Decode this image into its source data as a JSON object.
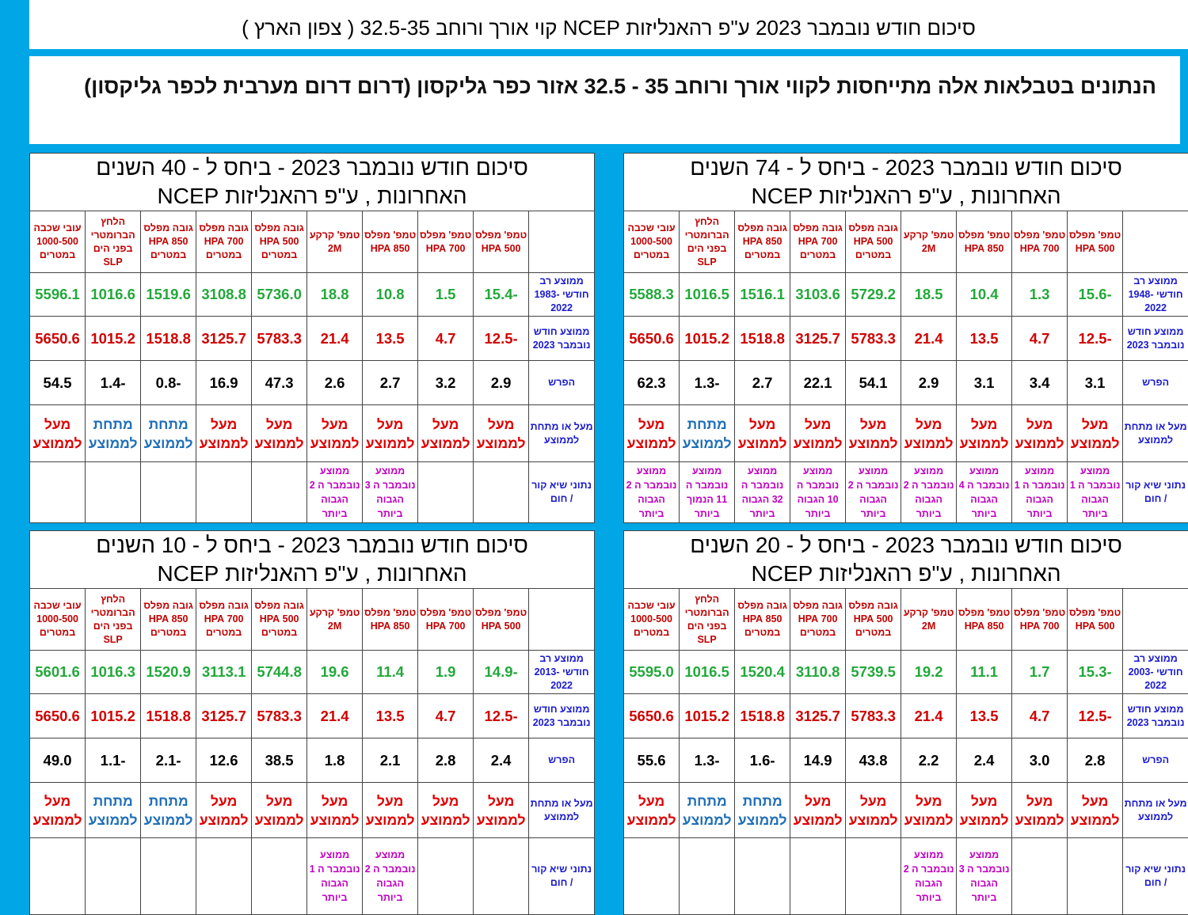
{
  "header": {
    "title": "סיכום חודש נובמבר 2023 ע\"פ רהאנליזות NCEP קוי אורך ורוחב 32.5-35 ( צפון הארץ )",
    "subtitle": "הנתונים בטבלאות אלה מתייחסות לקווי אורך ורוחב 35 - 32.5      אזור כפר  גליקסון  (דרום דרום מערבית לכפר גליקסון)"
  },
  "column_headers": [
    "טמפ' מפלס 500 HPA",
    "טמפ' מפלס 700 HPA",
    "טמפ' מפלס 850 HPA",
    "טמפ' קרקע 2M",
    "גובה מפלס 500 HPA במטרים",
    "גובה מפלס 700 HPA במטרים",
    "גובה מפלס 850 HPA במטרים",
    "הלחץ הברומטרי בפני הים SLP",
    "עובי שכבה 1000-500 במטרים"
  ],
  "tables": [
    {
      "title": "סיכום חודש נובמבר 2023 - ביחס ל - 74 השנים האחרונות , ע\"פ רהאנליזות NCEP",
      "rows": [
        {
          "label": "ממוצע רב חודשי 1948-2022",
          "color": "#22a83a",
          "cells": [
            "-15.6",
            "1.3",
            "10.4",
            "18.5",
            "5729.2",
            "3103.6",
            "1516.1",
            "1016.5",
            "5588.3"
          ]
        },
        {
          "label": "ממוצע חודש נובמבר 2023",
          "color": "#d00000",
          "cells": [
            "-12.5",
            "4.7",
            "13.5",
            "21.4",
            "5783.3",
            "3125.7",
            "1518.8",
            "1015.2",
            "5650.6"
          ]
        },
        {
          "label": "הפרש",
          "color": "#000000",
          "cells": [
            "3.1",
            "3.4",
            "3.1",
            "2.9",
            "54.1",
            "22.1",
            "2.7",
            "-1.3",
            "62.3"
          ]
        },
        {
          "label": "מעל או מתחת לממוצע",
          "cells": [
            "מעל לממוצע",
            "מעל לממוצע",
            "מעל לממוצע",
            "מעל לממוצע",
            "מעל לממוצע",
            "מעל לממוצע",
            "מעל לממוצע",
            "מתחת לממוצע",
            "מעל לממוצע"
          ],
          "cell_colors": [
            "#e00000",
            "#e00000",
            "#e00000",
            "#e00000",
            "#e00000",
            "#e00000",
            "#e00000",
            "#1f6fb8",
            "#e00000"
          ]
        },
        {
          "label": "נתוני שיא קור / חום",
          "color": "#c000c0",
          "cells": [
            "ממוצע נובמבר ה 1 הגבוה ביותר",
            "ממוצע נובמבר ה 1 הגבוה ביותר",
            "ממוצע נובמבר ה 4 הגבוה ביותר",
            "ממוצע נובמבר ה 2 הגבוה ביותר",
            "ממוצע נובמבר ה 2 הגבוה ביותר",
            "ממוצע נובמבר ה 10 הגבוה ביותר",
            "ממוצע נובמבר ה 32 הגבוה ביותר",
            "ממוצע נובמבר ה 11 הנמוך ביותר",
            "ממוצע נובמבר ה 2 הגבוה ביותר"
          ]
        }
      ]
    },
    {
      "title": "סיכום חודש נובמבר 2023 - ביחס ל - 40 השנים האחרונות , ע\"פ רהאנליזות NCEP",
      "rows": [
        {
          "label": "ממוצע רב חודשי 1983-2022",
          "color": "#22a83a",
          "cells": [
            "-15.4",
            "1.5",
            "10.8",
            "18.8",
            "5736.0",
            "3108.8",
            "1519.6",
            "1016.6",
            "5596.1"
          ]
        },
        {
          "label": "ממוצע חודש נובמבר 2023",
          "color": "#d00000",
          "cells": [
            "-12.5",
            "4.7",
            "13.5",
            "21.4",
            "5783.3",
            "3125.7",
            "1518.8",
            "1015.2",
            "5650.6"
          ]
        },
        {
          "label": "הפרש",
          "color": "#000000",
          "cells": [
            "2.9",
            "3.2",
            "2.7",
            "2.6",
            "47.3",
            "16.9",
            "-0.8",
            "-1.4",
            "54.5"
          ]
        },
        {
          "label": "מעל או מתחת לממוצע",
          "cells": [
            "מעל לממוצע",
            "מעל לממוצע",
            "מעל לממוצע",
            "מעל לממוצע",
            "מעל לממוצע",
            "מעל לממוצע",
            "מתחת לממוצע",
            "מתחת לממוצע",
            "מעל לממוצע"
          ],
          "cell_colors": [
            "#e00000",
            "#e00000",
            "#e00000",
            "#e00000",
            "#e00000",
            "#e00000",
            "#1f6fb8",
            "#1f6fb8",
            "#e00000"
          ]
        },
        {
          "label": "נתוני שיא קור / חום",
          "color": "#c000c0",
          "cells": [
            null,
            null,
            "ממוצע נובמבר ה 3 הגבוה ביותר",
            "ממוצע נובמבר ה 2 הגבוה ביותר",
            null,
            null,
            null,
            null,
            null
          ]
        }
      ]
    },
    {
      "title": "סיכום חודש נובמבר 2023 - ביחס ל - 20 השנים האחרונות , ע\"פ רהאנליזות NCEP",
      "rows": [
        {
          "label": "ממוצע רב חודשי 2003-2022",
          "color": "#22a83a",
          "cells": [
            "-15.3",
            "1.7",
            "11.1",
            "19.2",
            "5739.5",
            "3110.8",
            "1520.4",
            "1016.5",
            "5595.0"
          ]
        },
        {
          "label": "ממוצע חודש נובמבר 2023",
          "color": "#d00000",
          "cells": [
            "-12.5",
            "4.7",
            "13.5",
            "21.4",
            "5783.3",
            "3125.7",
            "1518.8",
            "1015.2",
            "5650.6"
          ]
        },
        {
          "label": "הפרש",
          "color": "#000000",
          "cells": [
            "2.8",
            "3.0",
            "2.4",
            "2.2",
            "43.8",
            "14.9",
            "-1.6",
            "-1.3",
            "55.6"
          ]
        },
        {
          "label": "מעל או מתחת לממוצע",
          "cells": [
            "מעל לממוצע",
            "מעל לממוצע",
            "מעל לממוצע",
            "מעל לממוצע",
            "מעל לממוצע",
            "מעל לממוצע",
            "מתחת לממוצע",
            "מתחת לממוצע",
            "מעל לממוצע"
          ],
          "cell_colors": [
            "#e00000",
            "#e00000",
            "#e00000",
            "#e00000",
            "#e00000",
            "#e00000",
            "#1f6fb8",
            "#1f6fb8",
            "#e00000"
          ]
        },
        {
          "label": "נתוני שיא קור / חום",
          "color": "#c000c0",
          "cells": [
            null,
            null,
            "ממוצע נובמבר ה 3 הגבוה ביותר",
            "ממוצע נובמבר ה 2 הגבוה ביותר",
            null,
            null,
            null,
            null,
            null
          ]
        }
      ]
    },
    {
      "title": "סיכום חודש נובמבר 2023 - ביחס ל - 10 השנים האחרונות , ע\"פ רהאנליזות NCEP",
      "rows": [
        {
          "label": "ממוצע רב חודשי 2013-2022",
          "color": "#22a83a",
          "cells": [
            "-14.9",
            "1.9",
            "11.4",
            "19.6",
            "5744.8",
            "3113.1",
            "1520.9",
            "1016.3",
            "5601.6"
          ]
        },
        {
          "label": "ממוצע חודש נובמבר 2023",
          "color": "#d00000",
          "cells": [
            "-12.5",
            "4.7",
            "13.5",
            "21.4",
            "5783.3",
            "3125.7",
            "1518.8",
            "1015.2",
            "5650.6"
          ]
        },
        {
          "label": "הפרש",
          "color": "#000000",
          "cells": [
            "2.4",
            "2.8",
            "2.1",
            "1.8",
            "38.5",
            "12.6",
            "-2.1",
            "-1.1",
            "49.0"
          ]
        },
        {
          "label": "מעל או מתחת לממוצע",
          "cells": [
            "מעל לממוצע",
            "מעל לממוצע",
            "מעל לממוצע",
            "מעל לממוצע",
            "מעל לממוצע",
            "מעל לממוצע",
            "מתחת לממוצע",
            "מתחת לממוצע",
            "מעל לממוצע"
          ],
          "cell_colors": [
            "#e00000",
            "#e00000",
            "#e00000",
            "#e00000",
            "#e00000",
            "#e00000",
            "#1f6fb8",
            "#1f6fb8",
            "#e00000"
          ]
        },
        {
          "label": "נתוני שיא קור / חום",
          "color": "#c000c0",
          "cells": [
            null,
            null,
            "ממוצע נובמבר ה 2 הגבוה ביותר",
            "ממוצע נובמבר ה 1 הגבוה ביותר",
            null,
            null,
            null,
            null,
            null
          ]
        }
      ]
    }
  ]
}
